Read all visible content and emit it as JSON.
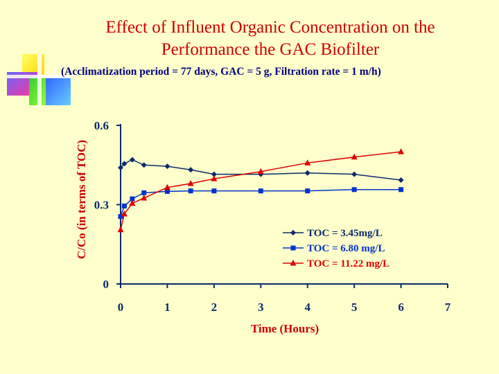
{
  "header": {
    "title_line1": "Effect of Influent Organic Concentration on the",
    "title_line2": "Performance the GAC Biofilter",
    "subtitle": "(Acclimatization period = 77 days, GAC = 5 g, Filtration rate = 1 m/h)"
  },
  "colors": {
    "background": "#FFFFCC",
    "title": "#CC0000",
    "subtitle": "#000080",
    "axis": "#0A2A6A",
    "axis_label": "#CC0000"
  },
  "chart_data": {
    "type": "line",
    "xlabel": "Time (Hours)",
    "ylabel": "C/Co (in terms of TOC)",
    "xlim": [
      0,
      7
    ],
    "ylim": [
      0,
      0.6
    ],
    "x_ticks": [
      "0",
      "1",
      "2",
      "3",
      "4",
      "5",
      "6",
      "7"
    ],
    "y_ticks": [
      "0",
      "0.3",
      "0.6"
    ],
    "grid": false,
    "legend_position": "bottom-right",
    "series": [
      {
        "name": "TOC = 3.45mg/L",
        "color": "#0A2A6A",
        "marker": "diamond",
        "x": [
          0,
          0.08,
          0.25,
          0.5,
          1,
          1.5,
          2,
          3,
          4,
          5,
          6
        ],
        "y": [
          0.44,
          0.455,
          0.47,
          0.45,
          0.445,
          0.432,
          0.415,
          0.415,
          0.42,
          0.415,
          0.393
        ]
      },
      {
        "name": "TOC = 6.80 mg/L",
        "color": "#0033CC",
        "marker": "square",
        "x": [
          0,
          0.08,
          0.25,
          0.5,
          1,
          1.5,
          2,
          3,
          4,
          5,
          6
        ],
        "y": [
          0.255,
          0.295,
          0.322,
          0.345,
          0.35,
          0.352,
          0.352,
          0.352,
          0.352,
          0.357,
          0.357
        ]
      },
      {
        "name": "TOC = 11.22 mg/L",
        "color": "#DD0000",
        "marker": "triangle",
        "x": [
          0,
          0.08,
          0.25,
          0.5,
          1,
          1.5,
          2,
          3,
          4,
          5,
          6
        ],
        "y": [
          0.205,
          0.265,
          0.305,
          0.325,
          0.365,
          0.38,
          0.398,
          0.425,
          0.458,
          0.48,
          0.5
        ]
      }
    ]
  }
}
